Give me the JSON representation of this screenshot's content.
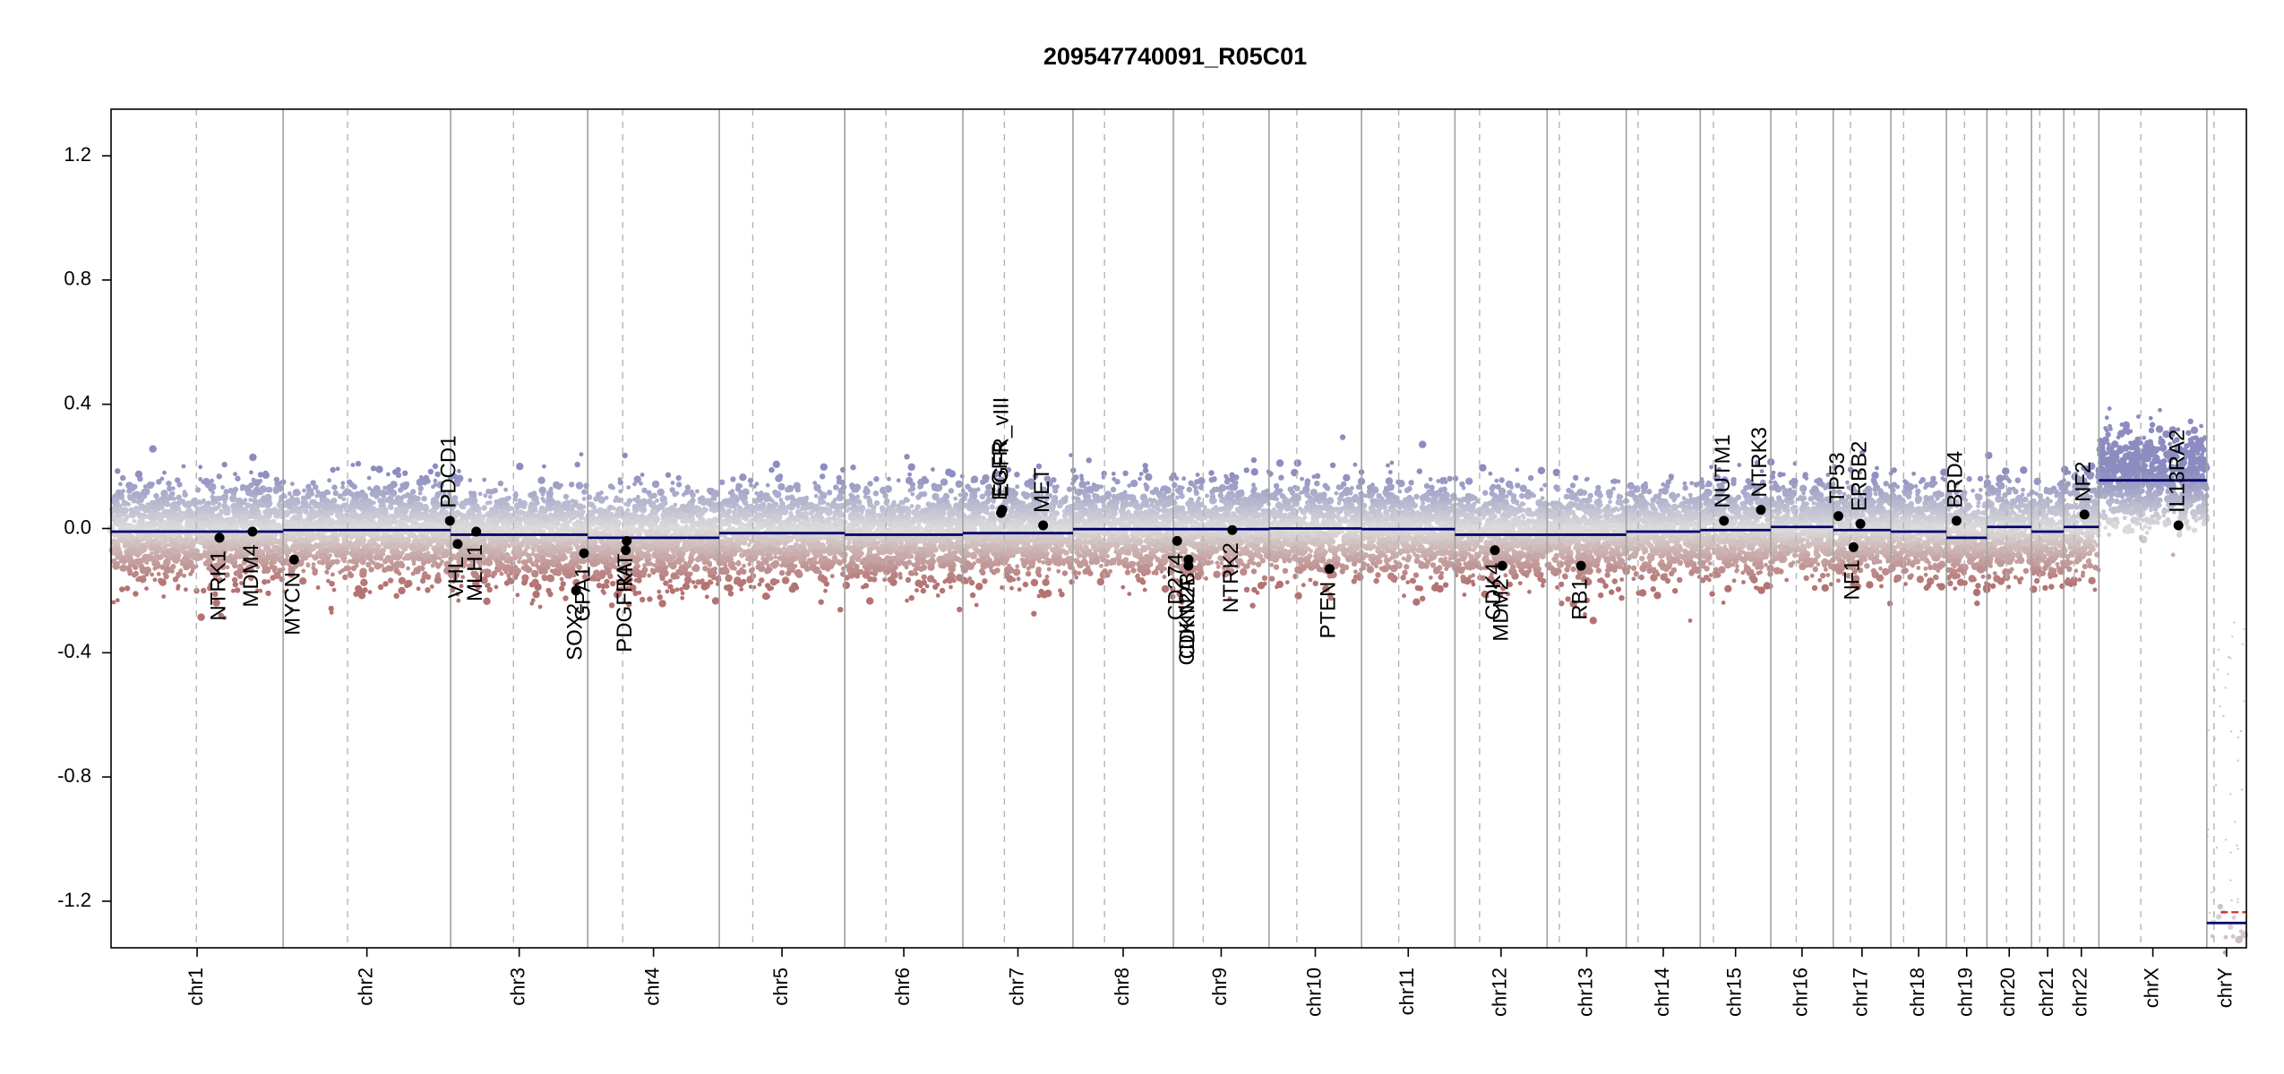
{
  "chart_data": {
    "type": "scatter",
    "title": "209547740091_R05C01",
    "xlabel": "",
    "ylabel": "",
    "ylim": [
      -1.35,
      1.35
    ],
    "yticks": [
      -1.2,
      -0.8,
      -0.4,
      0.0,
      0.4,
      0.8,
      1.2
    ],
    "ytick_labels": [
      "-1.2",
      "-0.8",
      "-0.4",
      "0.0",
      "0.4",
      "0.8",
      "1.2"
    ],
    "grid": false,
    "chromosomes": [
      {
        "name": "chr1",
        "start": 0,
        "end": 248.9,
        "centromere": 123.4
      },
      {
        "name": "chr2",
        "start": 248.9,
        "end": 491.1,
        "centromere": 342.1
      },
      {
        "name": "chr3",
        "start": 491.1,
        "end": 689.4,
        "centromere": 582.0
      },
      {
        "name": "chr4",
        "start": 689.4,
        "end": 879.6,
        "centromere": 740.0
      },
      {
        "name": "chr5",
        "start": 879.6,
        "end": 1061.1,
        "centromere": 928.1
      },
      {
        "name": "chr6",
        "start": 1061.1,
        "end": 1231.9,
        "centromere": 1120.6
      },
      {
        "name": "chr7",
        "start": 1231.9,
        "end": 1391.2,
        "centromere": 1292.0
      },
      {
        "name": "chr8",
        "start": 1391.2,
        "end": 1536.3,
        "centromere": 1436.8
      },
      {
        "name": "chr9",
        "start": 1536.3,
        "end": 1674.7,
        "centromere": 1579.5
      },
      {
        "name": "chr10",
        "start": 1674.7,
        "end": 1808.5,
        "centromere": 1714.9
      },
      {
        "name": "chr11",
        "start": 1808.5,
        "end": 1943.6,
        "centromere": 1862.3
      },
      {
        "name": "chr12",
        "start": 1943.6,
        "end": 2076.9,
        "centromere": 1979.2
      },
      {
        "name": "chr13",
        "start": 2076.9,
        "end": 2191.3,
        "centromere": 2094.6
      },
      {
        "name": "chr14",
        "start": 2191.3,
        "end": 2298.4,
        "centromere": 2208.4
      },
      {
        "name": "chr15",
        "start": 2298.4,
        "end": 2400.4,
        "centromere": 2317.4
      },
      {
        "name": "chr16",
        "start": 2400.4,
        "end": 2490.7,
        "centromere": 2437.2
      },
      {
        "name": "chr17",
        "start": 2490.7,
        "end": 2574.0,
        "centromere": 2515.5
      },
      {
        "name": "chr18",
        "start": 2574.0,
        "end": 2654.4,
        "centromere": 2592.4
      },
      {
        "name": "chr19",
        "start": 2654.4,
        "end": 2713.0,
        "centromere": 2680.6
      },
      {
        "name": "chr20",
        "start": 2713.0,
        "end": 2777.4,
        "centromere": 2741.4
      },
      {
        "name": "chr21",
        "start": 2777.4,
        "end": 2824.1,
        "centromere": 2789.4
      },
      {
        "name": "chr22",
        "start": 2824.1,
        "end": 2874.9,
        "centromere": 2839.0
      },
      {
        "name": "chrX",
        "start": 2874.9,
        "end": 3031.0,
        "centromere": 2935.5
      },
      {
        "name": "chrY",
        "start": 3031.0,
        "end": 3088.2,
        "centromere": 3041.4
      }
    ],
    "segments": [
      {
        "start": 0,
        "end": 248.9,
        "value": -0.01
      },
      {
        "start": 248.9,
        "end": 491.1,
        "value": -0.005
      },
      {
        "start": 491.1,
        "end": 689.4,
        "value": -0.02
      },
      {
        "start": 689.4,
        "end": 879.6,
        "value": -0.03
      },
      {
        "start": 879.6,
        "end": 1061.1,
        "value": -0.015
      },
      {
        "start": 1061.1,
        "end": 1231.9,
        "value": -0.02
      },
      {
        "start": 1231.9,
        "end": 1391.2,
        "value": -0.015
      },
      {
        "start": 1391.2,
        "end": 1536.3,
        "value": -0.002
      },
      {
        "start": 1536.3,
        "end": 1674.7,
        "value": -0.002
      },
      {
        "start": 1674.7,
        "end": 1808.5,
        "value": 0.0
      },
      {
        "start": 1808.5,
        "end": 1943.6,
        "value": -0.002
      },
      {
        "start": 1943.6,
        "end": 2076.9,
        "value": -0.02
      },
      {
        "start": 2076.9,
        "end": 2191.3,
        "value": -0.02
      },
      {
        "start": 2191.3,
        "end": 2298.4,
        "value": -0.01
      },
      {
        "start": 2298.4,
        "end": 2400.4,
        "value": -0.005
      },
      {
        "start": 2400.4,
        "end": 2490.7,
        "value": 0.005
      },
      {
        "start": 2490.7,
        "end": 2574.0,
        "value": -0.005
      },
      {
        "start": 2574.0,
        "end": 2654.4,
        "value": -0.01
      },
      {
        "start": 2654.4,
        "end": 2713.0,
        "value": -0.03
      },
      {
        "start": 2713.0,
        "end": 2777.4,
        "value": 0.005
      },
      {
        "start": 2777.4,
        "end": 2824.1,
        "value": -0.01
      },
      {
        "start": 2824.1,
        "end": 2874.9,
        "value": 0.005
      },
      {
        "start": 2874.9,
        "end": 3031.0,
        "value": 0.155
      },
      {
        "start": 3031.0,
        "end": 3088.2,
        "value": -1.27
      }
    ],
    "genes": [
      {
        "name": "NTRK1",
        "pos": 156.8,
        "value": -0.03,
        "label_side": "below"
      },
      {
        "name": "MDM4",
        "pos": 204.5,
        "value": -0.01,
        "label_side": "below"
      },
      {
        "name": "MYCN",
        "pos": 264.7,
        "value": -0.1,
        "label_side": "below"
      },
      {
        "name": "PDCD1",
        "pos": 490.0,
        "value": 0.025,
        "label_side": "above"
      },
      {
        "name": "VHL",
        "pos": 501.2,
        "value": -0.05,
        "label_side": "below"
      },
      {
        "name": "MLH1",
        "pos": 528.1,
        "value": -0.01,
        "label_side": "below"
      },
      {
        "name": "SOX2",
        "pos": 672.5,
        "value": -0.2,
        "label_side": "below"
      },
      {
        "name": "GPA1",
        "pos": 684.0,
        "value": -0.08,
        "label_side": "below"
      },
      {
        "name": "PDGFRA",
        "pos": 744.4,
        "value": -0.07,
        "label_side": "below"
      },
      {
        "name": "KIT",
        "pos": 745.8,
        "value": -0.04,
        "label_side": "below"
      },
      {
        "name": "EGFR",
        "pos": 1287.0,
        "value": 0.05,
        "label_side": "above"
      },
      {
        "name": "EGFR_vIII",
        "pos": 1289.0,
        "value": 0.06,
        "label_side": "above"
      },
      {
        "name": "MET",
        "pos": 1348.0,
        "value": 0.01,
        "label_side": "above"
      },
      {
        "name": "CD274",
        "pos": 1541.8,
        "value": -0.04,
        "label_side": "below"
      },
      {
        "name": "CDKN2A",
        "pos": 1558.2,
        "value": -0.12,
        "label_side": "below"
      },
      {
        "name": "CDKN2B",
        "pos": 1558.3,
        "value": -0.1,
        "label_side": "below"
      },
      {
        "name": "NTRK2",
        "pos": 1621.6,
        "value": -0.005,
        "label_side": "below"
      },
      {
        "name": "PTEN",
        "pos": 1762.2,
        "value": -0.13,
        "label_side": "below"
      },
      {
        "name": "CDK4",
        "pos": 2001.3,
        "value": -0.07,
        "label_side": "below"
      },
      {
        "name": "MDM2",
        "pos": 2012.0,
        "value": -0.12,
        "label_side": "below"
      },
      {
        "name": "RB1",
        "pos": 2125.9,
        "value": -0.12,
        "label_side": "below"
      },
      {
        "name": "NUTM1",
        "pos": 2332.6,
        "value": 0.025,
        "label_side": "above"
      },
      {
        "name": "NTRK3",
        "pos": 2386.0,
        "value": 0.06,
        "label_side": "above"
      },
      {
        "name": "TP53",
        "pos": 2498.2,
        "value": 0.04,
        "label_side": "above"
      },
      {
        "name": "NF1",
        "pos": 2520.0,
        "value": -0.06,
        "label_side": "below"
      },
      {
        "name": "ERBB2",
        "pos": 2530.0,
        "value": 0.015,
        "label_side": "above"
      },
      {
        "name": "BRD4",
        "pos": 2669.0,
        "value": 0.025,
        "label_side": "above"
      },
      {
        "name": "NF2",
        "pos": 2854.0,
        "value": 0.045,
        "label_side": "above"
      },
      {
        "name": "IL13RA2",
        "pos": 2990.0,
        "value": 0.01,
        "label_side": "above"
      }
    ],
    "colors": {
      "gain": "#8c8cc0",
      "loss": "#b47373",
      "neutral": "#dcdcdc",
      "segment": "#00006e",
      "gene_point": "#000000",
      "chrom_border": "#a0a0a0",
      "centromere": "#b4b4b4",
      "y_segment_loss": "#c83232"
    }
  }
}
